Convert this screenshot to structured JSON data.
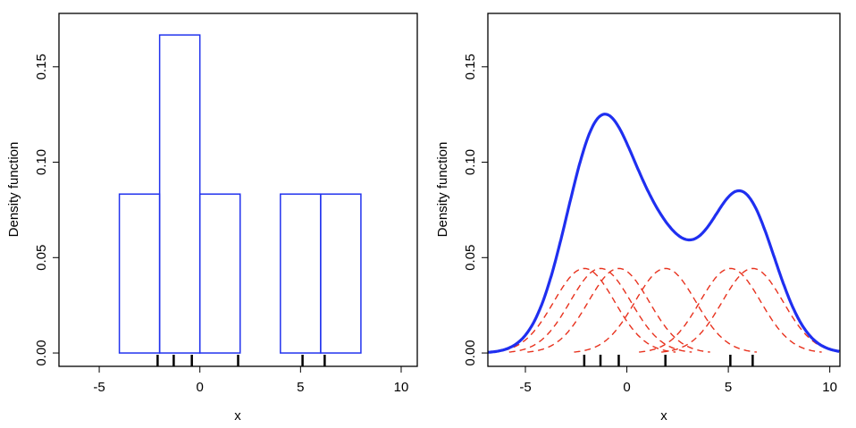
{
  "chart_data": [
    {
      "type": "bar",
      "title": "",
      "xlabel": "x",
      "ylabel": "Density function",
      "bin_edges": [
        -4,
        -2,
        0,
        2,
        4,
        6,
        8
      ],
      "values": [
        0.0833,
        0.1667,
        0.0833,
        0,
        0.0833,
        0.0833
      ],
      "rug": [
        -2.1,
        -1.3,
        -0.4,
        1.9,
        5.1,
        6.2
      ],
      "xlim": [
        -7,
        10.8
      ],
      "ylim": [
        -0.007,
        0.178
      ],
      "xticks": [
        "-5",
        "0",
        "5",
        "10"
      ],
      "xtick_values": [
        -5,
        0,
        5,
        10
      ],
      "yticks": [
        "0.00",
        "0.05",
        "0.10",
        "0.15"
      ],
      "ytick_values": [
        0,
        0.05,
        0.1,
        0.15
      ],
      "color": "#2233ee"
    },
    {
      "type": "line",
      "title": "",
      "xlabel": "x",
      "ylabel": "Density function",
      "points": [
        -2.1,
        -1.3,
        -0.4,
        1.9,
        5.1,
        6.2
      ],
      "bandwidth": 1.5,
      "series": [
        {
          "name": "kernel density estimate",
          "color": "#1f2ff0",
          "style": "solid"
        },
        {
          "name": "individual kernels",
          "color": "#e8321e",
          "style": "dashed"
        }
      ],
      "xlim": [
        -6.85,
        10.5
      ],
      "ylim": [
        -0.007,
        0.178
      ],
      "xticks": [
        "-5",
        "0",
        "5",
        "10"
      ],
      "xtick_values": [
        -5,
        0,
        5,
        10
      ],
      "yticks": [
        "0.00",
        "0.05",
        "0.10",
        "0.15"
      ],
      "ytick_values": [
        0,
        0.05,
        0.1,
        0.15
      ]
    }
  ]
}
